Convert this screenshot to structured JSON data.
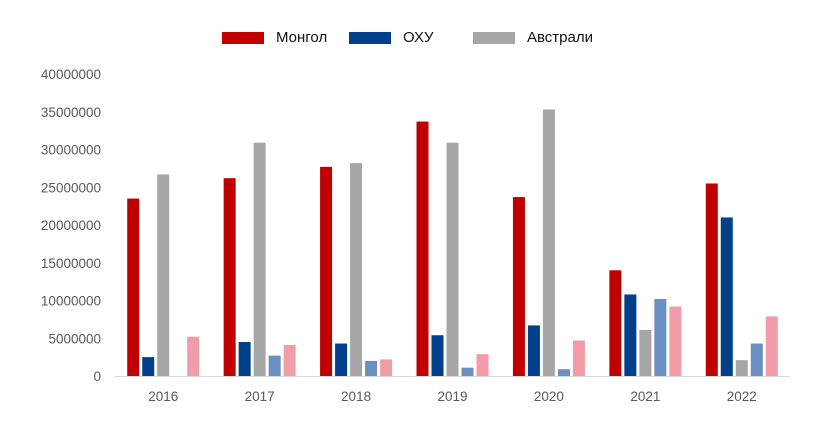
{
  "chart_data": {
    "type": "bar",
    "categories": [
      "2016",
      "2017",
      "2018",
      "2019",
      "2020",
      "2021",
      "2022"
    ],
    "series": [
      {
        "name": "Монгол",
        "color": "#c00000",
        "values": [
          23500000,
          26200000,
          27700000,
          33700000,
          23700000,
          14000000,
          25500000
        ]
      },
      {
        "name": "ОХУ",
        "color": "#003f8a",
        "values": [
          2500000,
          4500000,
          4300000,
          5400000,
          6700000,
          10800000,
          21000000
        ]
      },
      {
        "name": "Австрали",
        "color": "#a6a6a6",
        "values": [
          26700000,
          30900000,
          28200000,
          30900000,
          35300000,
          6100000,
          2100000
        ]
      },
      {
        "color": "#6b8ec3",
        "values": [
          0,
          2700000,
          2000000,
          1100000,
          900000,
          10200000,
          4300000
        ]
      },
      {
        "color": "#f19ca8",
        "values": [
          5200000,
          4100000,
          2200000,
          2900000,
          4700000,
          9200000,
          7900000
        ]
      }
    ],
    "y_ticks": [
      "0",
      "5000000",
      "10000000",
      "15000000",
      "20000000",
      "25000000",
      "30000000",
      "35000000",
      "40000000"
    ],
    "ylim": [
      0,
      40000000
    ],
    "title": "",
    "xlabel": "",
    "ylabel": "",
    "legend_position": "top",
    "grid": false
  }
}
